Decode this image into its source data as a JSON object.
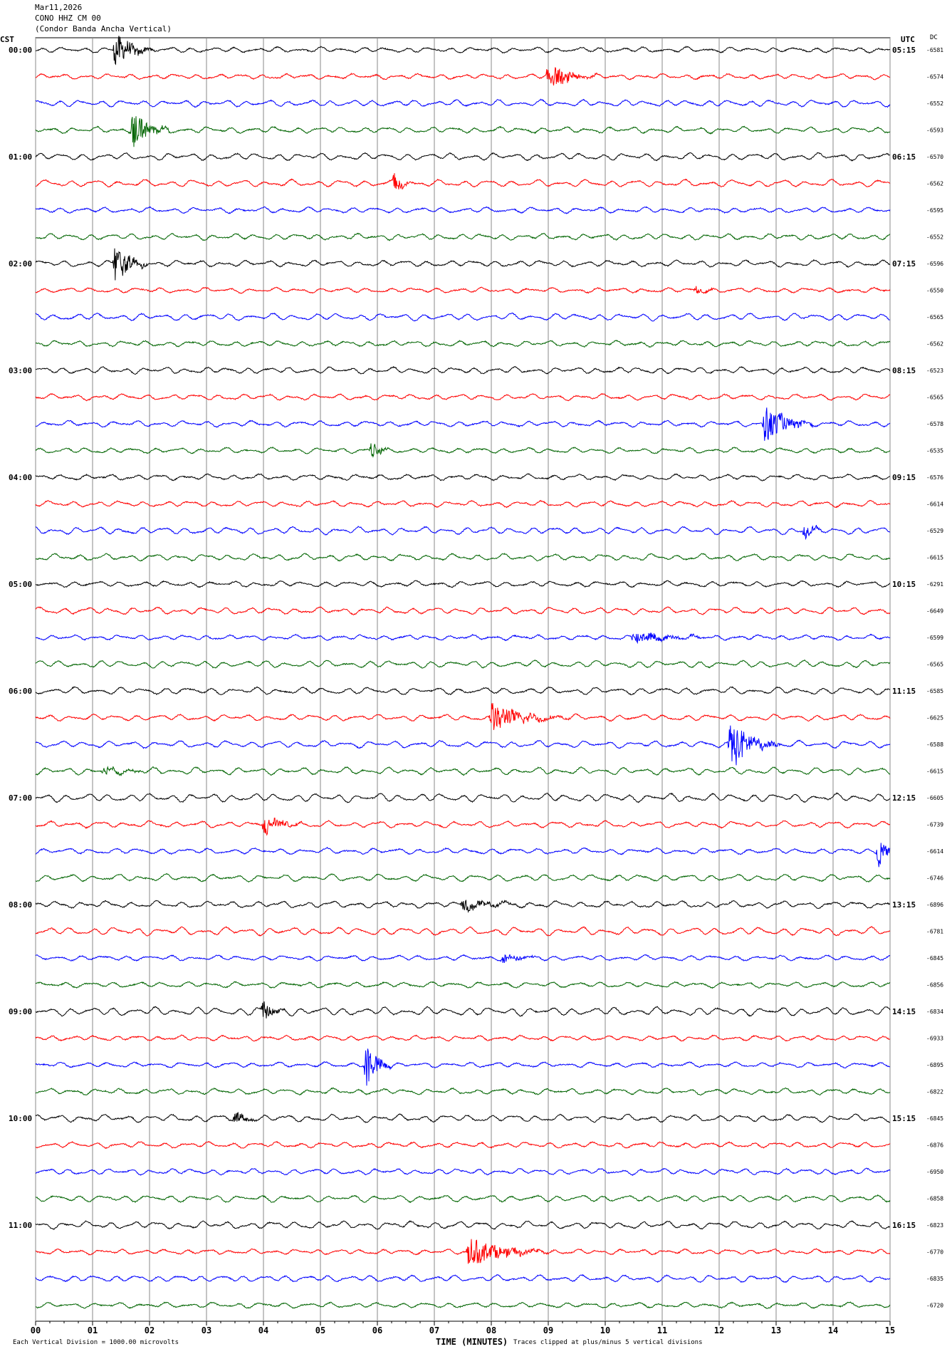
{
  "header": {
    "date": "Mar11,2026",
    "station": "CONO HHZ CM 00",
    "description": "(Condor Banda Ancha Vertical)"
  },
  "left_tz": "CST",
  "right_tz": "UTC",
  "dc_header": "DC",
  "footer": {
    "vertical_division": "Each Vertical Division = 1000.00 microvolts",
    "xlabel": "TIME (MINUTES)",
    "clip_note": "Traces clipped at plus/minus 5 vertical divisions"
  },
  "colors": {
    "cycle": [
      "#000000",
      "#ff0000",
      "#0000ff",
      "#006400"
    ],
    "grid": "#888888"
  },
  "chart_data": {
    "type": "line",
    "title": "CONO HHZ CM 00 (Condor Banda Ancha Vertical)",
    "xlabel": "TIME (MINUTES)",
    "x_ticks": [
      "00",
      "01",
      "02",
      "03",
      "04",
      "05",
      "06",
      "07",
      "08",
      "09",
      "10",
      "11",
      "12",
      "13",
      "14",
      "15"
    ],
    "xlim": [
      0,
      15
    ],
    "rows": 48,
    "minutes_per_row": 15,
    "left_hour_labels": [
      "00:00",
      "01:00",
      "02:00",
      "03:00",
      "04:00",
      "05:00",
      "06:00",
      "07:00",
      "08:00",
      "09:00",
      "10:00",
      "11:00"
    ],
    "right_hour_labels": [
      "05:15",
      "06:15",
      "07:15",
      "08:15",
      "09:15",
      "10:15",
      "11:15",
      "12:15",
      "13:15",
      "14:15",
      "15:15",
      "16:15"
    ],
    "dc_offsets": [
      "-6581",
      "-6574",
      "-6552",
      "-6593",
      "-6570",
      "-6562",
      "-6595",
      "-6552",
      "-6596",
      "-6550",
      "-6565",
      "-6562",
      "-6523",
      "-6565",
      "-6578",
      "-6535",
      "-6576",
      "-6614",
      "-6529",
      "-6615",
      "-6291",
      "-6649",
      "-6599",
      "-6565",
      "-6585",
      "-6625",
      "-6588",
      "-6615",
      "-6605",
      "-6739",
      "-6614",
      "-6746",
      "-6896",
      "-6781",
      "-6845",
      "-6856",
      "-6834",
      "-6933",
      "-6895",
      "-6822",
      "-6845",
      "-6876",
      "-6950",
      "-6858",
      "-6823",
      "-6770",
      "-6835",
      "-6720"
    ],
    "events": [
      {
        "row": 0,
        "minute": 1.4,
        "amplitude": 2.2,
        "duration": 0.7
      },
      {
        "row": 1,
        "minute": 9.0,
        "amplitude": 1.6,
        "duration": 0.9
      },
      {
        "row": 3,
        "minute": 1.7,
        "amplitude": 2.4,
        "duration": 0.7
      },
      {
        "row": 5,
        "minute": 6.3,
        "amplitude": 1.0,
        "duration": 0.4
      },
      {
        "row": 8,
        "minute": 1.4,
        "amplitude": 2.6,
        "duration": 0.6
      },
      {
        "row": 9,
        "minute": 11.6,
        "amplitude": 0.5,
        "duration": 0.4
      },
      {
        "row": 14,
        "minute": 12.8,
        "amplitude": 2.4,
        "duration": 0.9
      },
      {
        "row": 15,
        "minute": 5.9,
        "amplitude": 1.0,
        "duration": 0.5
      },
      {
        "row": 18,
        "minute": 13.5,
        "amplitude": 1.0,
        "duration": 0.4
      },
      {
        "row": 22,
        "minute": 10.5,
        "amplitude": 0.8,
        "duration": 1.4
      },
      {
        "row": 25,
        "minute": 8.0,
        "amplitude": 1.8,
        "duration": 1.4
      },
      {
        "row": 26,
        "minute": 12.2,
        "amplitude": 3.2,
        "duration": 0.9
      },
      {
        "row": 27,
        "minute": 1.2,
        "amplitude": 0.5,
        "duration": 1.0
      },
      {
        "row": 29,
        "minute": 4.0,
        "amplitude": 1.2,
        "duration": 0.8
      },
      {
        "row": 30,
        "minute": 14.8,
        "amplitude": 1.6,
        "duration": 0.4
      },
      {
        "row": 32,
        "minute": 7.5,
        "amplitude": 0.7,
        "duration": 1.3
      },
      {
        "row": 34,
        "minute": 8.2,
        "amplitude": 0.6,
        "duration": 0.8
      },
      {
        "row": 36,
        "minute": 4.0,
        "amplitude": 1.3,
        "duration": 0.4
      },
      {
        "row": 38,
        "minute": 5.8,
        "amplitude": 3.0,
        "duration": 0.5
      },
      {
        "row": 40,
        "minute": 3.5,
        "amplitude": 0.8,
        "duration": 0.5
      },
      {
        "row": 45,
        "minute": 7.6,
        "amplitude": 1.8,
        "duration": 1.5
      }
    ]
  }
}
